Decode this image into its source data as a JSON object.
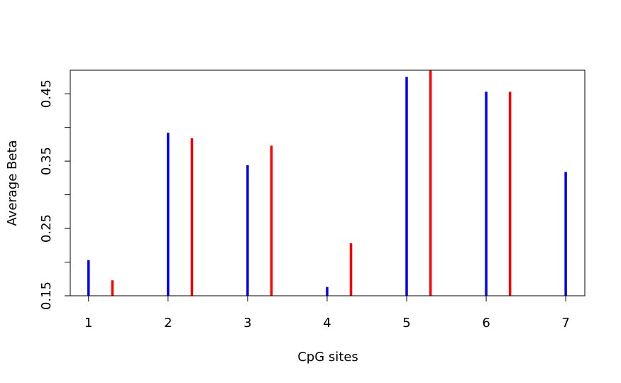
{
  "chart_data": {
    "type": "bar",
    "title": "",
    "xlabel": "CpG sites",
    "ylabel": "Average Beta",
    "x_ticks": [
      "1",
      "2",
      "3",
      "4",
      "5",
      "6",
      "7"
    ],
    "y_ticks": [
      {
        "value": 0.15,
        "label": "0.15"
      },
      {
        "value": 0.2,
        "label": ""
      },
      {
        "value": 0.25,
        "label": "0.25"
      },
      {
        "value": 0.3,
        "label": ""
      },
      {
        "value": 0.35,
        "label": "0.35"
      },
      {
        "value": 0.4,
        "label": ""
      },
      {
        "value": 0.45,
        "label": "0.45"
      }
    ],
    "xlim": [
      0.77,
      7.24
    ],
    "ylim": [
      0.15,
      0.485
    ],
    "grid": false,
    "series": [
      {
        "color": "#0000ff",
        "x_offset": 0,
        "x": [
          1,
          2,
          3,
          4,
          5,
          6,
          7
        ],
        "values": [
          0.203,
          0.392,
          0.344,
          0.163,
          0.475,
          0.453,
          0.334
        ]
      },
      {
        "color": "#ff0000",
        "x_offset": 0.3,
        "x": [
          1,
          2,
          3,
          4,
          5,
          6
        ],
        "values": [
          0.173,
          0.384,
          0.373,
          0.228,
          0.49,
          0.453
        ]
      }
    ]
  }
}
